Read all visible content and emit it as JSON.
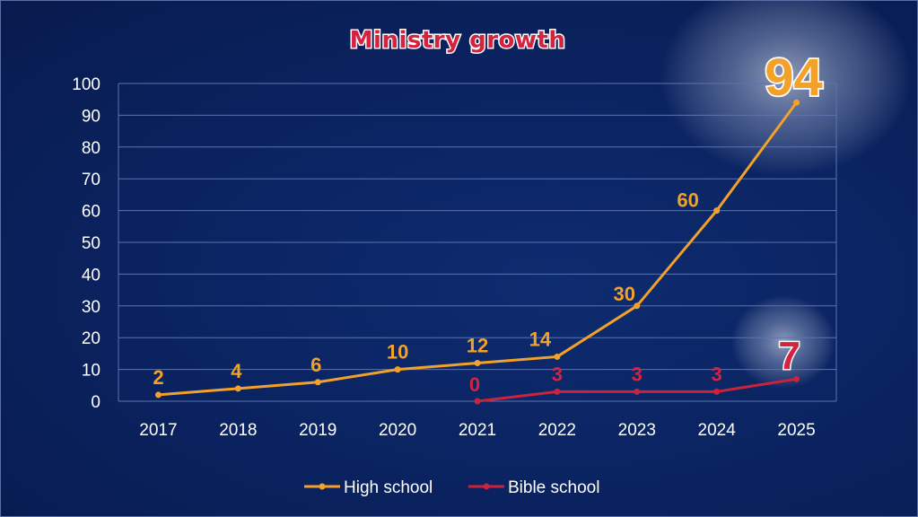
{
  "chart_data": {
    "type": "line",
    "title": "Ministry growth",
    "categories": [
      "2017",
      "2018",
      "2019",
      "2020",
      "2021",
      "2022",
      "2023",
      "2024",
      "2025"
    ],
    "y_ticks": [
      "0",
      "10",
      "20",
      "30",
      "40",
      "50",
      "60",
      "70",
      "80",
      "90",
      "100"
    ],
    "ylim": [
      0,
      100
    ],
    "grid": true,
    "legend_position": "bottom",
    "series": [
      {
        "name": "High school",
        "color": "#f2a12a",
        "values": [
          2,
          4,
          6,
          10,
          12,
          14,
          30,
          60,
          94
        ],
        "labels": [
          "2",
          "4",
          "6",
          "10",
          "12",
          "14",
          "30",
          "60",
          "94"
        ]
      },
      {
        "name": "Bible school",
        "color": "#c8243c",
        "values": [
          null,
          null,
          null,
          null,
          0,
          3,
          3,
          3,
          7
        ],
        "labels": [
          "",
          "",
          "",
          "",
          "0",
          "3",
          "3",
          "3",
          "7"
        ]
      }
    ]
  }
}
